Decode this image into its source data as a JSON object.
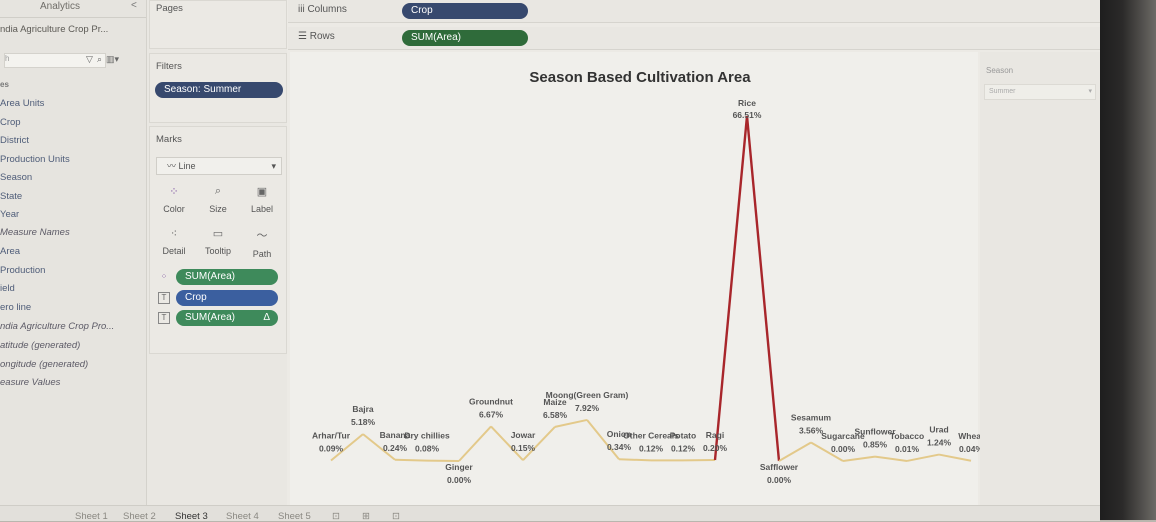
{
  "left_pane": {
    "analytics_tab": "Analytics",
    "collapse": "<",
    "data_source": "ndia Agriculture Crop Pr...",
    "search_prefix": "h",
    "section": "es",
    "fields": [
      "Area Units",
      "Crop",
      "District",
      "Production Units",
      "Season",
      "State",
      "Year"
    ],
    "measures": [
      {
        "label": "Measure Names",
        "italic": true
      },
      {
        "label": "Area",
        "italic": false
      },
      {
        "label": "Production",
        "italic": false
      },
      {
        "label": "ield",
        "italic": false
      },
      {
        "label": "ero line",
        "italic": false
      },
      {
        "label": "ndia Agriculture Crop Pro...",
        "italic": true
      },
      {
        "label": "atitude (generated)",
        "italic": true
      },
      {
        "label": "ongitude (generated)",
        "italic": true
      },
      {
        "label": "easure Values",
        "italic": true
      }
    ]
  },
  "pages": {
    "title": "Pages"
  },
  "filters": {
    "title": "Filters",
    "pill": "Season: Summer"
  },
  "marks": {
    "title": "Marks",
    "type": "Line",
    "buttons": [
      {
        "label": "Color",
        "icon": "color-icon"
      },
      {
        "label": "Size",
        "icon": "size-icon"
      },
      {
        "label": "Label",
        "icon": "label-icon"
      },
      {
        "label": "Detail",
        "icon": "detail-icon"
      },
      {
        "label": "Tooltip",
        "icon": "tooltip-icon"
      },
      {
        "label": "Path",
        "icon": "path-icon"
      }
    ],
    "pills": [
      "SUM(Area)",
      "Crop",
      "SUM(Area)"
    ],
    "delta": "Δ"
  },
  "columns": {
    "label": "Columns",
    "pill": "Crop"
  },
  "rows": {
    "label": "Rows",
    "pill": "SUM(Area)"
  },
  "right_panel": {
    "title": "Season",
    "value": "Summer"
  },
  "sheet_tabs": [
    "Sheet 1",
    "Sheet 2",
    "Sheet 3",
    "Sheet 4",
    "Sheet 5"
  ],
  "active_sheet": "Sheet 3",
  "chart_data": {
    "type": "line",
    "title": "Season Based Cultivation Area",
    "line_color": "#e3c98a",
    "peak_color": "#a8262b",
    "points": [
      {
        "name": "Arhar/Tur",
        "value": "0.09%",
        "pct": 0.09
      },
      {
        "name": "Bajra",
        "value": "5.18%",
        "pct": 5.18
      },
      {
        "name": "Banana",
        "value": "0.24%",
        "pct": 0.24
      },
      {
        "name": "Dry chillies",
        "value": "0.08%",
        "pct": 0.08
      },
      {
        "name": "Ginger",
        "value": "0.00%",
        "pct": 0.0
      },
      {
        "name": "Groundnut",
        "value": "6.67%",
        "pct": 6.67
      },
      {
        "name": "Jowar",
        "value": "0.15%",
        "pct": 0.15
      },
      {
        "name": "Maize",
        "value": "6.58%",
        "pct": 6.58
      },
      {
        "name": "Moong(Green Gram)",
        "value": "7.92%",
        "pct": 7.92
      },
      {
        "name": "Onion",
        "value": "0.34%",
        "pct": 0.34
      },
      {
        "name": "Other Cereals",
        "value": "0.12%",
        "pct": 0.12
      },
      {
        "name": "Potato",
        "value": "0.12%",
        "pct": 0.12
      },
      {
        "name": "Ragi",
        "value": "0.20%",
        "pct": 0.2
      },
      {
        "name": "Rice",
        "value": "66.51%",
        "pct": 66.51
      },
      {
        "name": "Safflower",
        "value": "0.00%",
        "pct": 0.0
      },
      {
        "name": "Sesamum",
        "value": "3.56%",
        "pct": 3.56
      },
      {
        "name": "Sugarcane",
        "value": "0.00%",
        "pct": 0.0
      },
      {
        "name": "Sunflower",
        "value": "0.85%",
        "pct": 0.85
      },
      {
        "name": "Tobacco",
        "value": "0.01%",
        "pct": 0.01
      },
      {
        "name": "Urad",
        "value": "1.24%",
        "pct": 1.24
      },
      {
        "name": "Wheat",
        "value": "0.04%",
        "pct": 0.04
      }
    ]
  }
}
